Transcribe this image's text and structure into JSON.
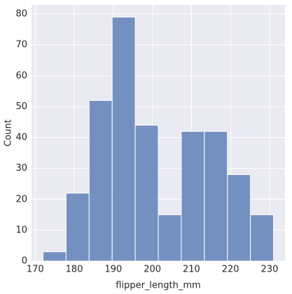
{
  "chart_data": {
    "type": "histogram",
    "x_label": "flipper_length_mm",
    "y_label": "Count",
    "bins": [
      172,
      177.9,
      183.8,
      189.7,
      195.6,
      201.5,
      207.4,
      213.3,
      219.2,
      225.1,
      231
    ],
    "values": [
      3,
      22,
      52,
      79,
      44,
      15,
      42,
      42,
      28,
      15
    ],
    "color": "#4c72b0",
    "xlim": [
      169.05,
      233.95
    ],
    "xticks": [
      170,
      180,
      190,
      200,
      210,
      220,
      230
    ],
    "ylim": [
      0,
      82.95
    ],
    "yticks": [
      0,
      10,
      20,
      30,
      40,
      50,
      60,
      70,
      80
    ],
    "grid": true
  }
}
